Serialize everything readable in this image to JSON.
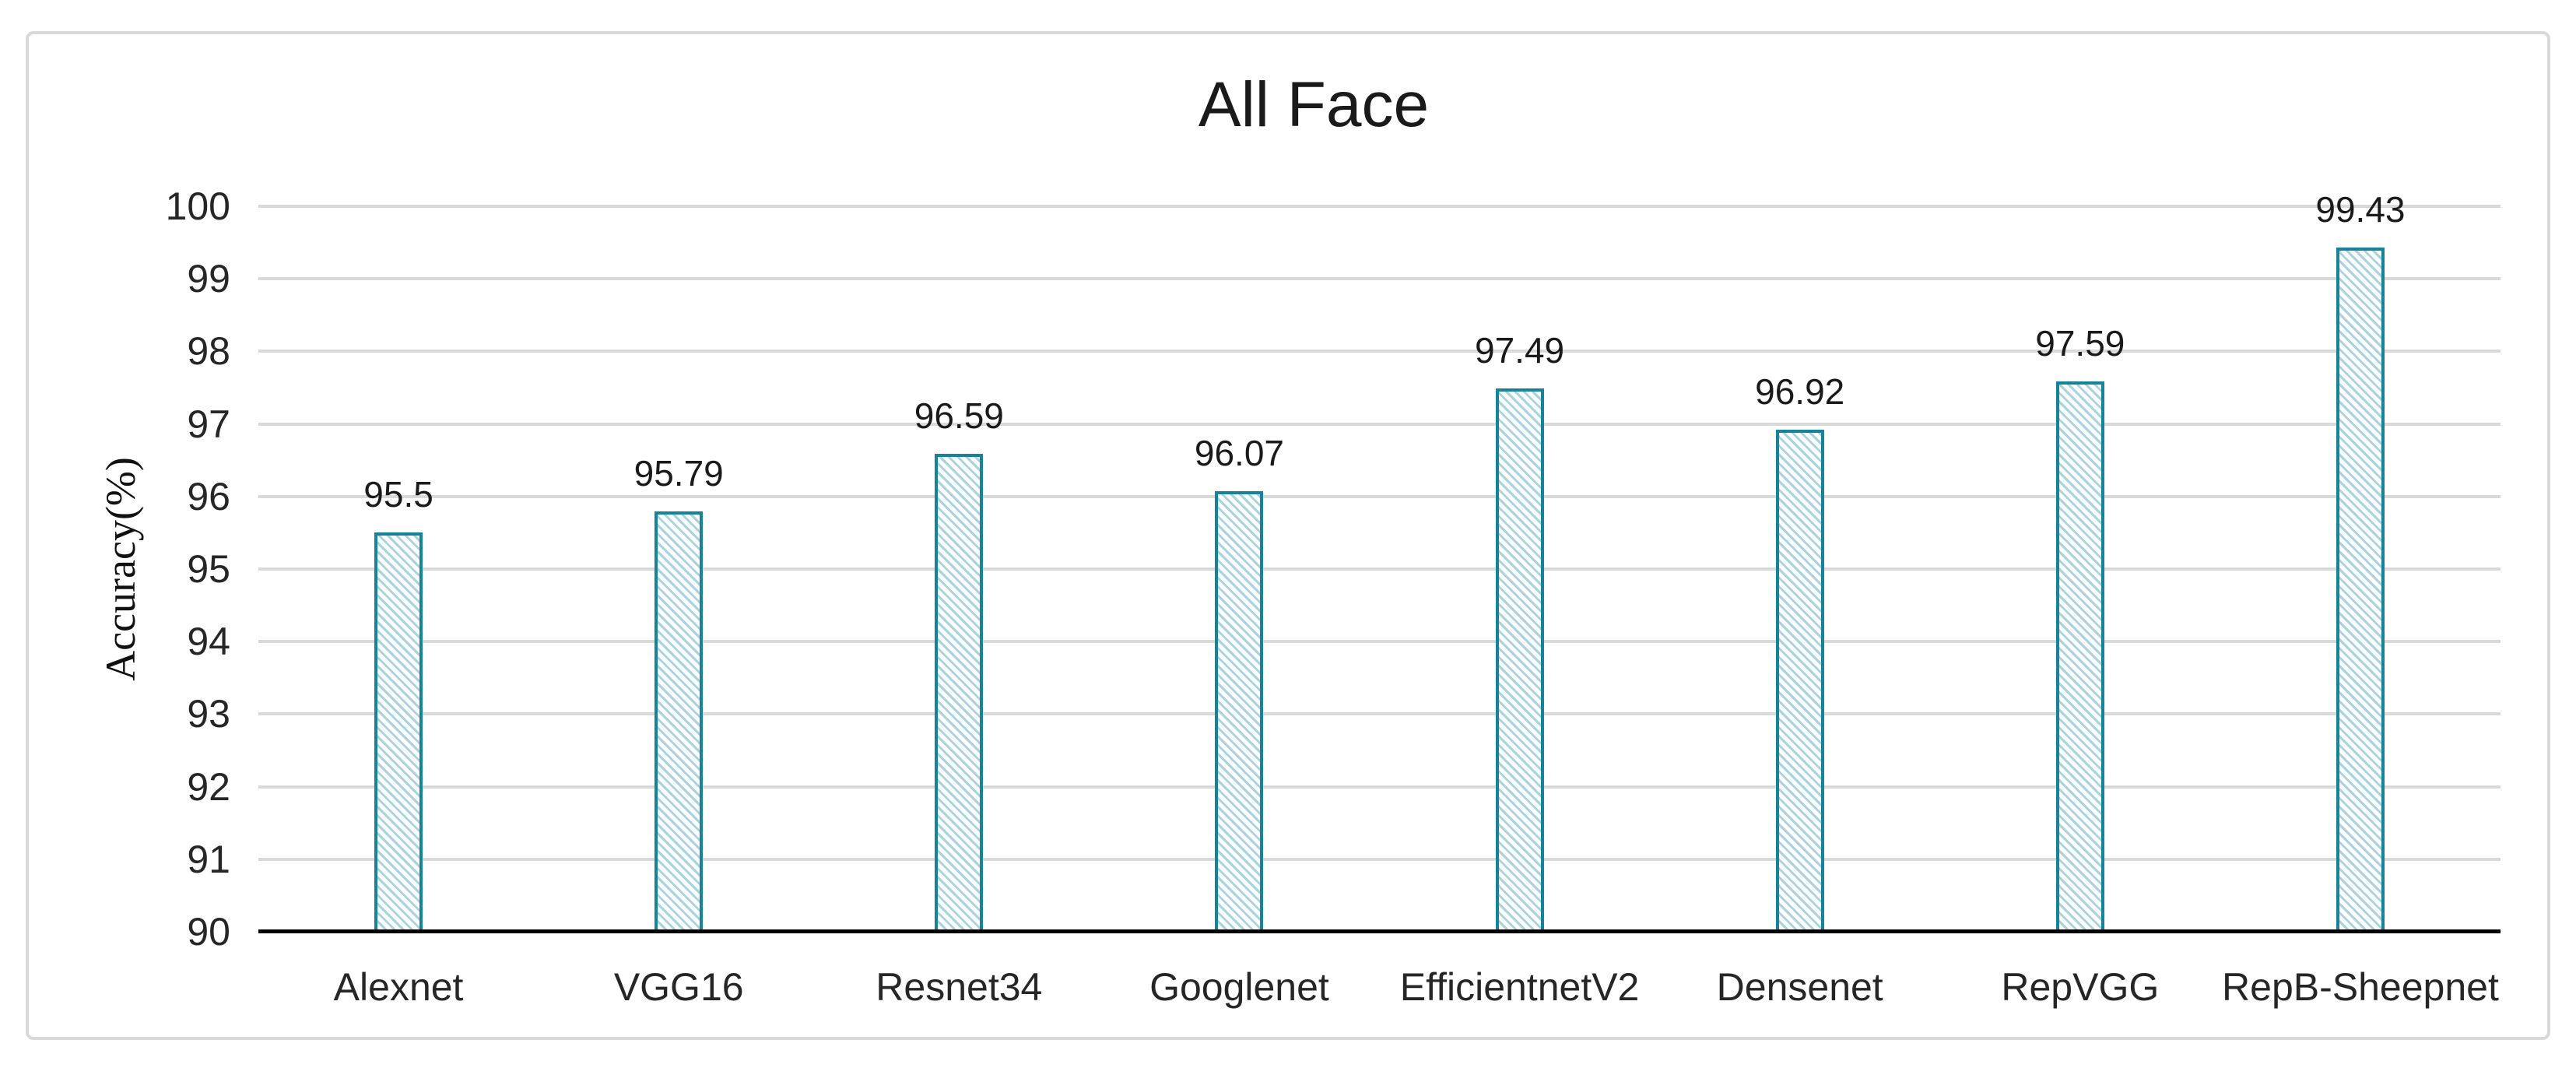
{
  "chart_data": {
    "type": "bar",
    "title": "All Face",
    "xlabel": "",
    "ylabel": "Accuracy(%)",
    "categories": [
      "Alexnet",
      "VGG16",
      "Resnet34",
      "Googlenet",
      "EfficientnetV2",
      "Densenet",
      "RepVGG",
      "RepB-Sheepnet"
    ],
    "values": [
      95.5,
      95.79,
      96.59,
      96.07,
      97.49,
      96.92,
      97.59,
      99.43
    ],
    "data_labels": [
      "95.5",
      "95.79",
      "96.59",
      "96.07",
      "97.49",
      "96.92",
      "97.59",
      "99.43"
    ],
    "ylim": [
      90,
      100
    ],
    "yticks": [
      100,
      99,
      98,
      97,
      96,
      95,
      94,
      93,
      92,
      91,
      90
    ],
    "grid": true,
    "legend_position": "none",
    "colors": {
      "bar_border": "#16839b",
      "bar_hatch": "#a9d4df",
      "bar_fill_background": "#ffffff",
      "gridline": "#d9d9d9",
      "axis_line": "#000000",
      "text": "#262626",
      "frame_border": "#d9d9d9",
      "background": "#ffffff"
    }
  }
}
